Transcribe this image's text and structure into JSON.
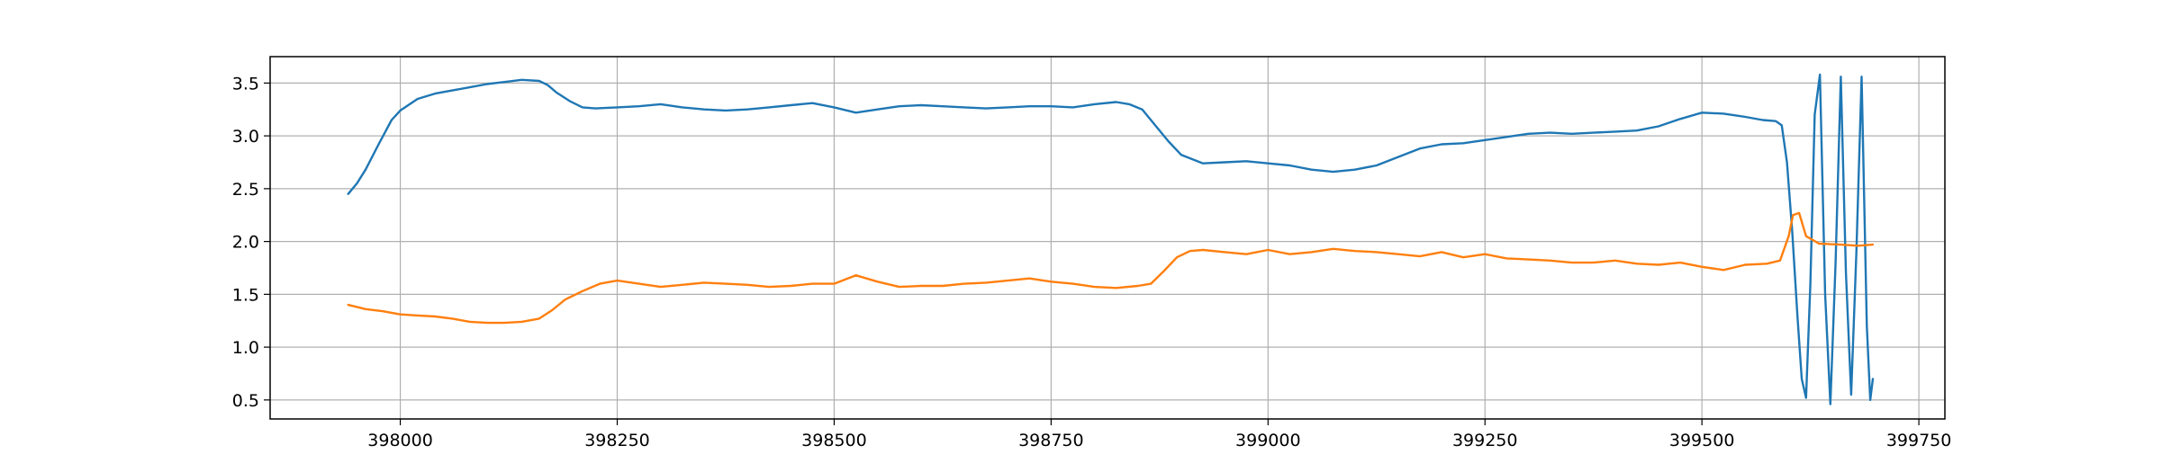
{
  "chart_data": {
    "type": "line",
    "title": "",
    "xlabel": "",
    "ylabel": "",
    "xlim": [
      397850,
      399780
    ],
    "ylim": [
      0.32,
      3.75
    ],
    "grid": true,
    "legend": "none",
    "xticks": [
      398000,
      398250,
      398500,
      398750,
      399000,
      399250,
      399500,
      399750
    ],
    "xtick_labels": [
      "398000",
      "398250",
      "398500",
      "398750",
      "399000",
      "399250",
      "399500",
      "399750"
    ],
    "yticks": [
      0.5,
      1.0,
      1.5,
      2.0,
      2.5,
      3.0,
      3.5
    ],
    "ytick_labels": [
      "0.5",
      "1.0",
      "1.5",
      "2.0",
      "2.5",
      "3.0",
      "3.5"
    ],
    "series": [
      {
        "color": "#1f77b4",
        "x": [
          397940,
          397950,
          397960,
          397975,
          397990,
          398000,
          398020,
          398040,
          398060,
          398080,
          398100,
          398120,
          398140,
          398160,
          398170,
          398180,
          398195,
          398210,
          398225,
          398250,
          398275,
          398300,
          398325,
          398350,
          398375,
          398400,
          398425,
          398450,
          398475,
          398500,
          398525,
          398550,
          398575,
          398600,
          398625,
          398650,
          398675,
          398700,
          398725,
          398750,
          398775,
          398800,
          398825,
          398840,
          398855,
          398870,
          398885,
          398900,
          398925,
          398950,
          398975,
          399000,
          399025,
          399050,
          399075,
          399100,
          399125,
          399150,
          399175,
          399200,
          399225,
          399250,
          399275,
          399300,
          399325,
          399350,
          399375,
          399400,
          399425,
          399450,
          399475,
          399500,
          399525,
          399550,
          399570,
          399585,
          399592,
          399598,
          399604,
          399610,
          399615,
          399620,
          399625,
          399630,
          399636,
          399642,
          399648,
          399654,
          399660,
          399666,
          399672,
          399678,
          399684,
          399690,
          399694,
          399697
        ],
        "y": [
          2.45,
          2.55,
          2.68,
          2.92,
          3.15,
          3.24,
          3.35,
          3.4,
          3.43,
          3.46,
          3.49,
          3.51,
          3.53,
          3.52,
          3.48,
          3.41,
          3.33,
          3.27,
          3.26,
          3.27,
          3.28,
          3.3,
          3.27,
          3.25,
          3.24,
          3.25,
          3.27,
          3.29,
          3.31,
          3.27,
          3.22,
          3.25,
          3.28,
          3.29,
          3.28,
          3.27,
          3.26,
          3.27,
          3.28,
          3.28,
          3.27,
          3.3,
          3.32,
          3.3,
          3.25,
          3.1,
          2.95,
          2.82,
          2.74,
          2.75,
          2.76,
          2.74,
          2.72,
          2.68,
          2.66,
          2.68,
          2.72,
          2.8,
          2.88,
          2.92,
          2.93,
          2.96,
          2.99,
          3.02,
          3.03,
          3.02,
          3.03,
          3.04,
          3.05,
          3.09,
          3.16,
          3.22,
          3.21,
          3.18,
          3.15,
          3.14,
          3.1,
          2.75,
          2.1,
          1.3,
          0.7,
          0.52,
          1.6,
          3.2,
          3.58,
          1.5,
          0.46,
          1.8,
          3.56,
          1.7,
          0.55,
          1.9,
          3.56,
          1.2,
          0.5,
          0.7
        ]
      },
      {
        "color": "#ff7f0e",
        "x": [
          397940,
          397960,
          397980,
          398000,
          398020,
          398040,
          398060,
          398080,
          398100,
          398120,
          398140,
          398160,
          398175,
          398190,
          398210,
          398230,
          398250,
          398275,
          398300,
          398325,
          398350,
          398375,
          398400,
          398425,
          398450,
          398475,
          398500,
          398525,
          398550,
          398575,
          398600,
          398625,
          398650,
          398675,
          398700,
          398725,
          398750,
          398775,
          398800,
          398825,
          398850,
          398865,
          398880,
          398895,
          398910,
          398925,
          398950,
          398975,
          399000,
          399025,
          399050,
          399075,
          399100,
          399125,
          399150,
          399175,
          399200,
          399225,
          399250,
          399275,
          399300,
          399325,
          399350,
          399375,
          399400,
          399425,
          399450,
          399475,
          399500,
          399525,
          399550,
          399575,
          399590,
          399600,
          399605,
          399612,
          399620,
          399635,
          399660,
          399680,
          399697
        ],
        "y": [
          1.4,
          1.36,
          1.34,
          1.31,
          1.3,
          1.29,
          1.27,
          1.24,
          1.23,
          1.23,
          1.24,
          1.27,
          1.35,
          1.45,
          1.53,
          1.6,
          1.63,
          1.6,
          1.57,
          1.59,
          1.61,
          1.6,
          1.59,
          1.57,
          1.58,
          1.6,
          1.6,
          1.68,
          1.62,
          1.57,
          1.58,
          1.58,
          1.6,
          1.61,
          1.63,
          1.65,
          1.62,
          1.6,
          1.57,
          1.56,
          1.58,
          1.6,
          1.72,
          1.85,
          1.91,
          1.92,
          1.9,
          1.88,
          1.92,
          1.88,
          1.9,
          1.93,
          1.91,
          1.9,
          1.88,
          1.86,
          1.9,
          1.85,
          1.88,
          1.84,
          1.83,
          1.82,
          1.8,
          1.8,
          1.82,
          1.79,
          1.78,
          1.8,
          1.76,
          1.73,
          1.78,
          1.79,
          1.82,
          2.05,
          2.25,
          2.27,
          2.05,
          1.98,
          1.97,
          1.96,
          1.97
        ]
      }
    ]
  }
}
